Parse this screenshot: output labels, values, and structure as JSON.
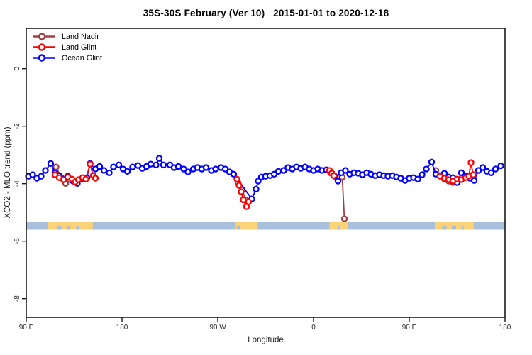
{
  "figure": {
    "title": "35S-30S February (Ver 10)   2015-01-01 to 2020-12-18"
  },
  "chart_data": {
    "type": "scatter",
    "title": "35S-30S February (Ver 10)   2015-01-01 to 2020-12-18",
    "xlabel": "Longitude",
    "ylabel": "XCO2 - MLO trend (ppm)",
    "xlim": [
      90,
      540
    ],
    "ylim": [
      -8.65,
      1.4
    ],
    "grid": false,
    "x_ticks": [
      {
        "v": 90,
        "label": "90 E"
      },
      {
        "v": 180,
        "label": "180"
      },
      {
        "v": 270,
        "label": "90 W"
      },
      {
        "v": 360,
        "label": "0"
      },
      {
        "v": 450,
        "label": "90 E"
      },
      {
        "v": 540,
        "label": "180"
      }
    ],
    "y_ticks": [
      {
        "v": 0,
        "label": "0"
      },
      {
        "v": -2,
        "label": "-2"
      },
      {
        "v": -4,
        "label": "-4"
      },
      {
        "v": -6,
        "label": "-6"
      },
      {
        "v": -8,
        "label": "-8"
      }
    ],
    "legend_position": "top-left",
    "legend": [
      {
        "label": "Land Nadir",
        "color": "#a04040"
      },
      {
        "label": "Land Glint",
        "color": "#ff0000"
      },
      {
        "label": "Ocean Glint",
        "color": "#0000ff"
      }
    ],
    "series": [
      {
        "id": "land-nadir",
        "name": "Land Nadir",
        "color": "#a04040",
        "segments": [
          [
            [
              118,
              -3.42
            ],
            [
              123,
              -3.79
            ],
            [
              127,
              -3.99
            ],
            [
              131,
              -3.86
            ]
          ],
          [
            [
              289,
              -3.96
            ],
            [
              293,
              -4.21
            ],
            [
              296,
              -4.56
            ]
          ],
          [
            [
              377,
              -3.62
            ],
            [
              387,
              -3.77
            ],
            [
              389,
              -5.22
            ]
          ],
          [
            [
              475,
              -3.54
            ],
            [
              479,
              -3.72
            ],
            [
              483,
              -3.84
            ],
            [
              487,
              -3.91
            ],
            [
              491,
              -3.96
            ]
          ]
        ]
      },
      {
        "id": "ocean-glint",
        "name": "Ocean Glint",
        "color": "#0000ff",
        "segments": [
          [
            [
              92,
              -3.74
            ],
            [
              96,
              -3.69
            ],
            [
              100,
              -3.81
            ],
            [
              104,
              -3.74
            ],
            [
              108,
              -3.54
            ],
            [
              113,
              -3.3
            ],
            [
              117,
              -3.62
            ],
            [
              121,
              -3.72
            ],
            [
              125,
              -3.84
            ],
            [
              129,
              -3.74
            ],
            [
              134,
              -3.91
            ],
            [
              138,
              -3.99
            ],
            [
              142,
              -3.84
            ],
            [
              147,
              -3.79
            ],
            [
              150,
              -3.3
            ],
            [
              155,
              -3.49
            ],
            [
              159,
              -3.4
            ],
            [
              163,
              -3.54
            ],
            [
              168,
              -3.62
            ],
            [
              172,
              -3.42
            ],
            [
              177,
              -3.35
            ],
            [
              181,
              -3.49
            ],
            [
              185,
              -3.57
            ],
            [
              190,
              -3.42
            ],
            [
              195,
              -3.37
            ],
            [
              199,
              -3.47
            ],
            [
              203,
              -3.4
            ],
            [
              207,
              -3.32
            ],
            [
              212,
              -3.35
            ],
            [
              215,
              -3.12
            ],
            [
              219,
              -3.35
            ],
            [
              225,
              -3.35
            ],
            [
              229,
              -3.44
            ],
            [
              233,
              -3.4
            ],
            [
              238,
              -3.49
            ],
            [
              242,
              -3.59
            ],
            [
              247,
              -3.49
            ],
            [
              251,
              -3.44
            ],
            [
              255,
              -3.49
            ],
            [
              259,
              -3.44
            ],
            [
              264,
              -3.54
            ],
            [
              268,
              -3.49
            ],
            [
              273,
              -3.44
            ],
            [
              277,
              -3.49
            ],
            [
              281,
              -3.59
            ],
            [
              285,
              -3.67
            ],
            [
              302,
              -4.53
            ],
            [
              306,
              -4.19
            ],
            [
              308,
              -3.91
            ],
            [
              311,
              -3.77
            ],
            [
              315,
              -3.74
            ],
            [
              319,
              -3.72
            ],
            [
              323,
              -3.67
            ],
            [
              327,
              -3.57
            ],
            [
              332,
              -3.54
            ],
            [
              336,
              -3.44
            ],
            [
              340,
              -3.49
            ],
            [
              344,
              -3.42
            ],
            [
              348,
              -3.47
            ],
            [
              352,
              -3.42
            ],
            [
              356,
              -3.49
            ],
            [
              360,
              -3.54
            ],
            [
              364,
              -3.49
            ],
            [
              368,
              -3.54
            ],
            [
              372,
              -3.52
            ],
            [
              376,
              -3.62
            ],
            [
              380,
              -3.74
            ],
            [
              383,
              -3.91
            ],
            [
              386,
              -3.62
            ],
            [
              390,
              -3.54
            ],
            [
              394,
              -3.67
            ],
            [
              398,
              -3.62
            ],
            [
              402,
              -3.64
            ],
            [
              406,
              -3.69
            ],
            [
              410,
              -3.62
            ],
            [
              414,
              -3.67
            ],
            [
              418,
              -3.72
            ],
            [
              422,
              -3.69
            ],
            [
              426,
              -3.72
            ],
            [
              430,
              -3.74
            ],
            [
              434,
              -3.72
            ],
            [
              438,
              -3.77
            ],
            [
              442,
              -3.81
            ],
            [
              446,
              -3.89
            ],
            [
              450,
              -3.81
            ],
            [
              454,
              -3.79
            ],
            [
              458,
              -3.84
            ],
            [
              462,
              -3.69
            ],
            [
              466,
              -3.49
            ],
            [
              471,
              -3.25
            ],
            [
              475,
              -3.67
            ],
            [
              479,
              -3.72
            ],
            [
              483,
              -3.64
            ],
            [
              487,
              -3.77
            ],
            [
              491,
              -3.79
            ],
            [
              495,
              -3.96
            ],
            [
              499,
              -3.62
            ],
            [
              503,
              -3.74
            ],
            [
              507,
              -3.81
            ],
            [
              511,
              -3.89
            ],
            [
              515,
              -3.54
            ],
            [
              519,
              -3.44
            ],
            [
              523,
              -3.57
            ],
            [
              527,
              -3.62
            ],
            [
              531,
              -3.49
            ],
            [
              536,
              -3.38
            ]
          ]
        ]
      },
      {
        "id": "land-glint",
        "name": "Land Glint",
        "color": "#ff0000",
        "segments": [
          [
            [
              117,
              -3.69
            ],
            [
              121,
              -3.79
            ],
            [
              125,
              -3.86
            ],
            [
              129,
              -3.77
            ],
            [
              133,
              -3.84
            ],
            [
              136,
              -3.94
            ],
            [
              139,
              -3.86
            ],
            [
              143,
              -3.79
            ],
            [
              146,
              -3.84
            ],
            [
              150,
              -3.32
            ],
            [
              153,
              -3.72
            ],
            [
              155,
              -3.81
            ]
          ],
          [
            [
              288,
              -3.84
            ],
            [
              290,
              -4.06
            ],
            [
              292,
              -4.28
            ],
            [
              294,
              -4.56
            ],
            [
              297,
              -4.8
            ],
            [
              299,
              -4.63
            ]
          ],
          [
            [
              375,
              -3.54
            ],
            [
              377,
              -3.64
            ],
            [
              379,
              -3.72
            ]
          ],
          [
            [
              479,
              -3.74
            ],
            [
              483,
              -3.81
            ],
            [
              487,
              -3.86
            ],
            [
              491,
              -3.91
            ],
            [
              495,
              -3.84
            ],
            [
              499,
              -3.86
            ],
            [
              503,
              -3.79
            ],
            [
              506,
              -3.74
            ],
            [
              508,
              -3.27
            ],
            [
              510,
              -3.69
            ]
          ]
        ]
      }
    ],
    "map_strip": {
      "y_top": -5.33,
      "y_bottom": -5.6,
      "ocean_color": "#a9c0dd",
      "land_color": "#fbd277",
      "land_patches": [
        {
          "from": 110.5,
          "to": 152.5,
          "notches": [
            [
              119,
              123
            ],
            [
              128,
              131
            ],
            [
              137,
              140
            ]
          ]
        },
        {
          "from": 287.0,
          "to": 307.5,
          "notches": [
            [
              288,
              291
            ]
          ]
        },
        {
          "from": 375.0,
          "to": 392.5,
          "notches": [
            [
              383,
              385
            ]
          ]
        },
        {
          "from": 474.0,
          "to": 510.5,
          "notches": [
            [
              481,
              485
            ],
            [
              490,
              494
            ],
            [
              499,
              501
            ]
          ]
        }
      ]
    }
  }
}
